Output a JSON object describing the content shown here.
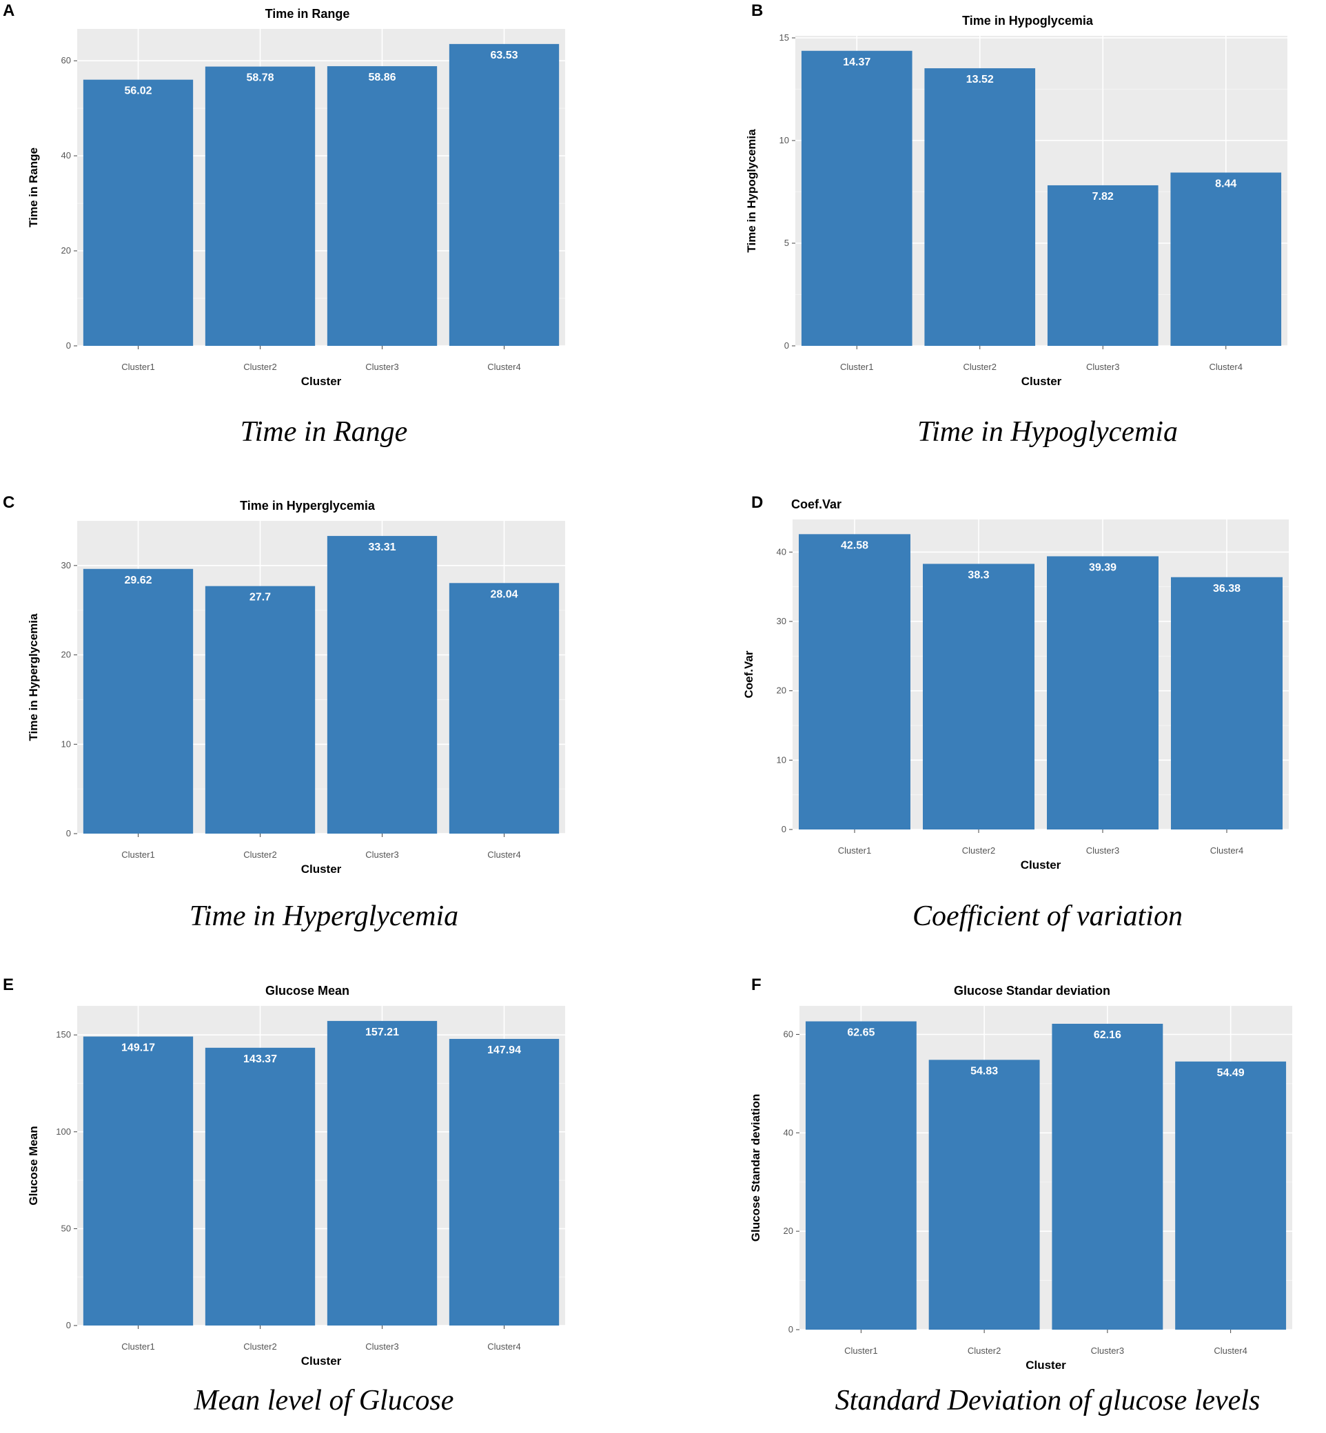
{
  "colors": {
    "bar": "#3a7eb9",
    "panel_bg": "#ebebeb",
    "grid": "#ffffff",
    "label": "#ffffff"
  },
  "chart_data": [
    {
      "letter": "A",
      "type": "bar",
      "title": "Time in Range",
      "xlabel": "Cluster",
      "ylabel": "Time in Range",
      "caption": "Time in Range",
      "categories": [
        "Cluster1",
        "Cluster2",
        "Cluster3",
        "Cluster4"
      ],
      "values": [
        56.02,
        58.78,
        58.86,
        63.53
      ],
      "labels": [
        "56.02",
        "58.78",
        "58.86",
        "63.53"
      ],
      "yticks": [
        0,
        20,
        40,
        60
      ],
      "ylim": [
        0,
        66.7
      ]
    },
    {
      "letter": "B",
      "type": "bar",
      "title": "Time in Hypoglycemia",
      "xlabel": "Cluster",
      "ylabel": "Time in Hypoglycemia",
      "caption": "Time in Hypoglycemia",
      "categories": [
        "Cluster1",
        "Cluster2",
        "Cluster3",
        "Cluster4"
      ],
      "values": [
        14.37,
        13.52,
        7.82,
        8.44
      ],
      "labels": [
        "14.37",
        "13.52",
        "7.82",
        "8.44"
      ],
      "yticks": [
        0,
        5,
        10,
        15
      ],
      "ylim": [
        0,
        15.1
      ]
    },
    {
      "letter": "C",
      "type": "bar",
      "title": "Time in Hyperglycemia",
      "xlabel": "Cluster",
      "ylabel": "Time in Hyperglycemia",
      "caption": "Time in Hyperglycemia",
      "categories": [
        "Cluster1",
        "Cluster2",
        "Cluster3",
        "Cluster4"
      ],
      "values": [
        29.62,
        27.7,
        33.31,
        28.04
      ],
      "labels": [
        "29.62",
        "27.7",
        "33.31",
        "28.04"
      ],
      "yticks": [
        0,
        10,
        20,
        30
      ],
      "ylim": [
        0,
        35
      ]
    },
    {
      "letter": "D",
      "type": "bar",
      "title": "Coef.Var",
      "xlabel": "Cluster",
      "ylabel": "Coef.Var",
      "caption": "Coefficient of variation",
      "categories": [
        "Cluster1",
        "Cluster2",
        "Cluster3",
        "Cluster4"
      ],
      "values": [
        42.58,
        38.3,
        39.39,
        36.38
      ],
      "labels": [
        "42.58",
        "38.3",
        "39.39",
        "36.38"
      ],
      "yticks": [
        0,
        10,
        20,
        30,
        40
      ],
      "ylim": [
        0,
        44.7
      ]
    },
    {
      "letter": "E",
      "type": "bar",
      "title": "Glucose Mean",
      "xlabel": "Cluster",
      "ylabel": "Glucose Mean",
      "caption": "Mean level of Glucose",
      "categories": [
        "Cluster1",
        "Cluster2",
        "Cluster3",
        "Cluster4"
      ],
      "values": [
        149.17,
        143.37,
        157.21,
        147.94
      ],
      "labels": [
        "149.17",
        "143.37",
        "157.21",
        "147.94"
      ],
      "yticks": [
        0,
        50,
        100,
        150
      ],
      "ylim": [
        0,
        165
      ]
    },
    {
      "letter": "F",
      "type": "bar",
      "title": "Glucose Standar deviation",
      "xlabel": "Cluster",
      "ylabel": "Glucose Standar deviation",
      "caption": "Standard Deviation of glucose levels",
      "categories": [
        "Cluster1",
        "Cluster2",
        "Cluster3",
        "Cluster4"
      ],
      "values": [
        62.65,
        54.83,
        62.16,
        54.49
      ],
      "labels": [
        "62.65",
        "54.83",
        "62.16",
        "54.49"
      ],
      "yticks": [
        0,
        20,
        40,
        60
      ],
      "ylim": [
        0,
        65.8
      ]
    }
  ]
}
